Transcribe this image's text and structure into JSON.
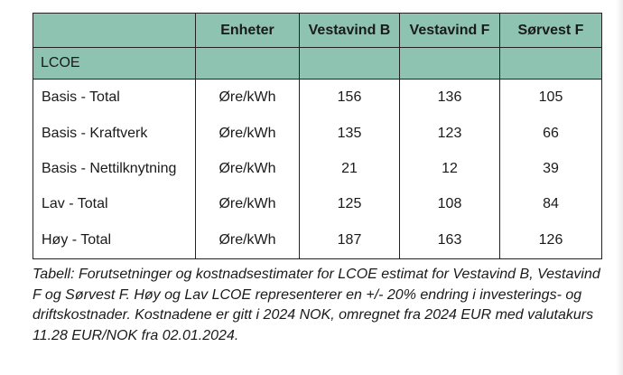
{
  "table": {
    "columns": [
      "",
      "Enheter",
      "Vestavind B",
      "Vestavind F",
      "Sørvest F"
    ],
    "section_label": "LCOE",
    "rows": [
      {
        "label": "Basis - Total",
        "unit": "Øre/kWh",
        "values": [
          "156",
          "136",
          "105"
        ]
      },
      {
        "label": "Basis - Kraftverk",
        "unit": "Øre/kWh",
        "values": [
          "135",
          "123",
          "66"
        ]
      },
      {
        "label": "Basis - Nettilknytning",
        "unit": "Øre/kWh",
        "values": [
          "21",
          "12",
          "39"
        ]
      },
      {
        "label": "Lav - Total",
        "unit": "Øre/kWh",
        "values": [
          "125",
          "108",
          "84"
        ]
      },
      {
        "label": "Høy - Total",
        "unit": "Øre/kWh",
        "values": [
          "187",
          "163",
          "126"
        ]
      }
    ]
  },
  "caption": "Tabell: Forutsetninger og kostnadsestimater for LCOE estimat for Vestavind B, Vestavind F og Sørvest F. Høy og Lav LCOE representerer en +/- 20% endring i investerings- og driftskostnader. Kostnadene er gitt i 2024 NOK, omregnet fra 2024  EUR med valutakurs 11.28 EUR/NOK fra 02.01.2024.",
  "colors": {
    "header_bg": "#8ec3b1",
    "border": "#222222"
  }
}
